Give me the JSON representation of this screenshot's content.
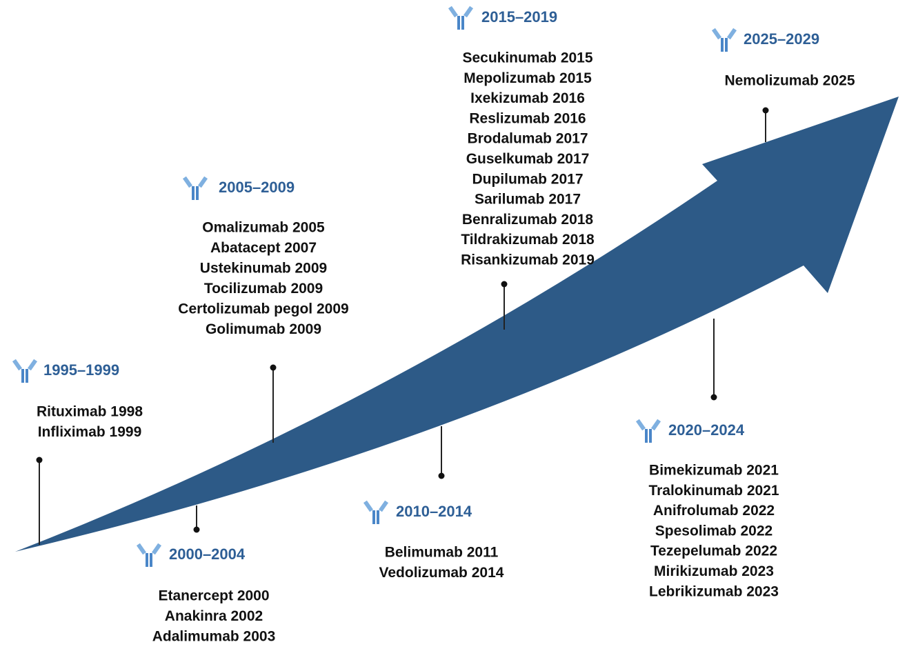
{
  "periods": [
    {
      "label": "1995–1999",
      "items": [
        "Rituximab 1998",
        "Infliximab 1999"
      ]
    },
    {
      "label": "2000–2004",
      "items": [
        "Etanercept 2000",
        "Anakinra 2002",
        "Adalimumab 2003"
      ]
    },
    {
      "label": "2005–2009",
      "items": [
        "Omalizumab 2005",
        "Abatacept 2007",
        "Ustekinumab 2009",
        "Tocilizumab 2009",
        "Certolizumab pegol 2009",
        "Golimumab 2009"
      ]
    },
    {
      "label": "2010–2014",
      "items": [
        "Belimumab 2011",
        "Vedolizumab 2014"
      ]
    },
    {
      "label": "2015–2019",
      "items": [
        "Secukinumab 2015",
        "Mepolizumab 2015",
        "Ixekizumab 2016",
        "Reslizumab 2016",
        "Brodalumab 2017",
        "Guselkumab 2017",
        "Dupilumab 2017",
        "Sarilumab 2017",
        "Benralizumab 2018",
        "Tildrakizumab 2018",
        "Risankizumab 2019"
      ]
    },
    {
      "label": "2020–2024",
      "items": [
        "Bimekizumab 2021",
        "Tralokinumab 2021",
        "Anifrolumab 2022",
        "Spesolimab 2022",
        "Tezepelumab 2022",
        "Mirikizumab 2023",
        "Lebrikizumab 2023"
      ]
    },
    {
      "label": "2025–2029",
      "items": [
        "Nemolizumab 2025"
      ]
    }
  ]
}
